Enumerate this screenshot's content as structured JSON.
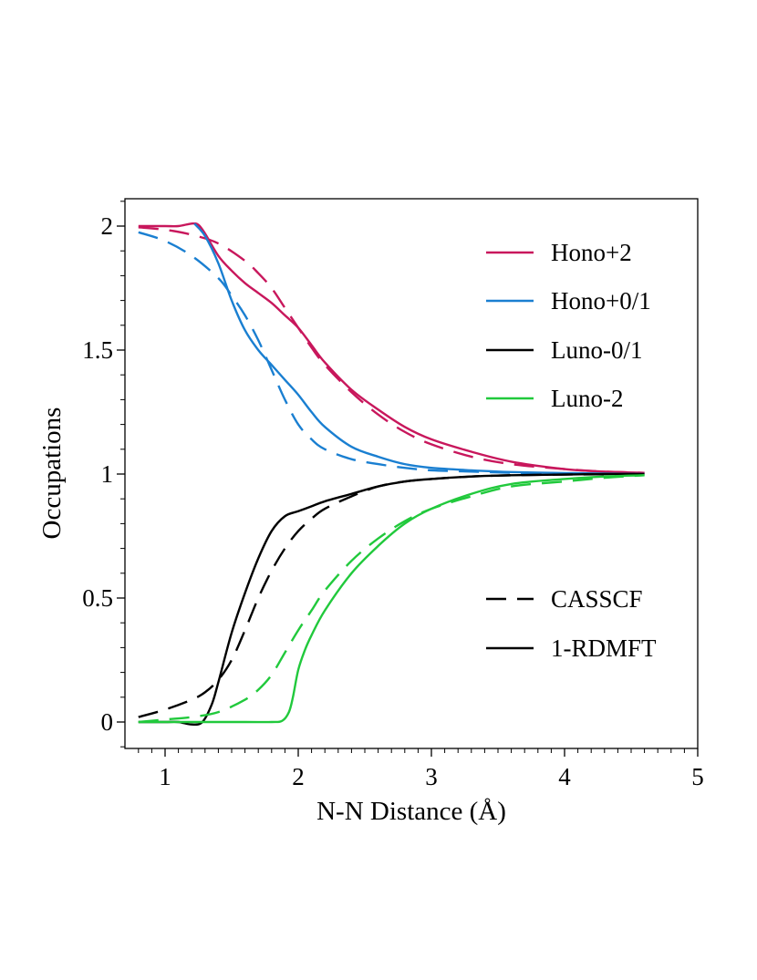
{
  "chart_data": {
    "type": "line",
    "title": "",
    "xlabel": "N-N Distance (Å)",
    "ylabel": "Occupations",
    "xlim": [
      0.7,
      5.0
    ],
    "ylim": [
      -0.1,
      2.1
    ],
    "x_ticks": [
      1,
      2,
      3,
      4,
      5
    ],
    "x_tick_labels": [
      "1",
      "2",
      "3",
      "4",
      "5"
    ],
    "y_ticks": [
      0,
      0.5,
      1,
      1.5,
      2
    ],
    "y_tick_labels": [
      "0",
      "0.5",
      "1",
      "1.5",
      "2"
    ],
    "grid": false,
    "legend_placement": "right",
    "legend": {
      "series": [
        {
          "label": "Hono+2",
          "color": "#c8175c"
        },
        {
          "label": "Hono+0/1",
          "color": "#1a7fd1"
        },
        {
          "label": "Luno-0/1",
          "color": "#000000"
        },
        {
          "label": "Luno-2",
          "color": "#21c93c"
        }
      ],
      "styles": [
        {
          "label": "CASSCF",
          "dash": "dashed"
        },
        {
          "label": "1-RDMFT",
          "dash": "solid"
        }
      ]
    },
    "series": [
      {
        "name": "Hono+2",
        "method": "1-RDMFT",
        "color": "#c8175c",
        "dash": "solid",
        "x": [
          0.8,
          1.0,
          1.1,
          1.2,
          1.25,
          1.3,
          1.4,
          1.5,
          1.6,
          1.7,
          1.8,
          1.9,
          2.0,
          2.1,
          2.2,
          2.4,
          2.6,
          2.8,
          3.0,
          3.3,
          3.6,
          4.0,
          4.3,
          4.6
        ],
        "y": [
          2.0,
          2.0,
          2.0,
          2.01,
          2.005,
          1.97,
          1.88,
          1.82,
          1.77,
          1.73,
          1.69,
          1.64,
          1.59,
          1.52,
          1.45,
          1.34,
          1.26,
          1.19,
          1.14,
          1.09,
          1.05,
          1.02,
          1.01,
          1.005
        ]
      },
      {
        "name": "Hono+2",
        "method": "CASSCF",
        "color": "#c8175c",
        "dash": "dashed",
        "x": [
          0.8,
          1.0,
          1.2,
          1.4,
          1.6,
          1.7,
          1.8,
          1.9,
          2.0,
          2.1,
          2.2,
          2.4,
          2.6,
          2.8,
          3.0,
          3.3,
          3.6,
          4.0,
          4.3,
          4.6
        ],
        "y": [
          1.995,
          1.985,
          1.965,
          1.93,
          1.86,
          1.81,
          1.75,
          1.67,
          1.59,
          1.51,
          1.44,
          1.33,
          1.24,
          1.17,
          1.12,
          1.07,
          1.04,
          1.02,
          1.01,
          1.005
        ]
      },
      {
        "name": "Hono+0/1",
        "method": "1-RDMFT",
        "color": "#1a7fd1",
        "dash": "solid",
        "x": [
          1.22,
          1.3,
          1.4,
          1.5,
          1.6,
          1.7,
          1.8,
          1.9,
          2.0,
          2.1,
          2.2,
          2.4,
          2.6,
          2.8,
          3.0,
          3.3,
          3.6,
          4.0,
          4.3,
          4.6
        ],
        "y": [
          2.01,
          1.96,
          1.85,
          1.7,
          1.58,
          1.5,
          1.44,
          1.38,
          1.32,
          1.25,
          1.19,
          1.11,
          1.07,
          1.04,
          1.025,
          1.015,
          1.008,
          1.004,
          1.002,
          1.0
        ]
      },
      {
        "name": "Hono+0/1",
        "method": "CASSCF",
        "color": "#1a7fd1",
        "dash": "dashed",
        "x": [
          0.8,
          1.0,
          1.2,
          1.4,
          1.5,
          1.6,
          1.7,
          1.8,
          1.9,
          2.0,
          2.1,
          2.2,
          2.4,
          2.6,
          2.8,
          3.0,
          3.3,
          3.6,
          4.0,
          4.6
        ],
        "y": [
          1.975,
          1.94,
          1.88,
          1.79,
          1.72,
          1.64,
          1.54,
          1.42,
          1.3,
          1.2,
          1.14,
          1.1,
          1.06,
          1.04,
          1.025,
          1.015,
          1.01,
          1.005,
          1.002,
          1.0
        ]
      },
      {
        "name": "Luno-0/1",
        "method": "1-RDMFT",
        "color": "#000000",
        "dash": "solid",
        "x": [
          0.8,
          1.0,
          1.1,
          1.2,
          1.28,
          1.35,
          1.4,
          1.5,
          1.6,
          1.7,
          1.8,
          1.9,
          2.0,
          2.1,
          2.2,
          2.4,
          2.6,
          2.8,
          3.0,
          3.3,
          3.6,
          4.0,
          4.3,
          4.6
        ],
        "y": [
          0.0,
          0.0,
          0.0,
          -0.01,
          0.0,
          0.07,
          0.16,
          0.36,
          0.52,
          0.66,
          0.77,
          0.83,
          0.85,
          0.87,
          0.89,
          0.92,
          0.95,
          0.97,
          0.98,
          0.99,
          0.995,
          0.998,
          1.0,
          1.0
        ]
      },
      {
        "name": "Luno-0/1",
        "method": "CASSCF",
        "color": "#000000",
        "dash": "dashed",
        "x": [
          0.8,
          1.0,
          1.2,
          1.3,
          1.4,
          1.5,
          1.6,
          1.7,
          1.8,
          1.9,
          2.0,
          2.1,
          2.2,
          2.4,
          2.6,
          2.8,
          3.0,
          3.3,
          3.6,
          4.0,
          4.6
        ],
        "y": [
          0.02,
          0.05,
          0.09,
          0.12,
          0.17,
          0.25,
          0.37,
          0.5,
          0.61,
          0.7,
          0.77,
          0.82,
          0.86,
          0.91,
          0.95,
          0.97,
          0.98,
          0.99,
          0.995,
          0.998,
          1.0
        ]
      },
      {
        "name": "Luno-2",
        "method": "1-RDMFT",
        "color": "#21c93c",
        "dash": "solid",
        "x": [
          0.8,
          1.2,
          1.6,
          1.8,
          1.88,
          1.93,
          1.96,
          2.0,
          2.05,
          2.1,
          2.2,
          2.4,
          2.6,
          2.8,
          3.0,
          3.3,
          3.6,
          4.0,
          4.3,
          4.6
        ],
        "y": [
          0.0,
          0.0,
          0.0,
          0.0,
          0.005,
          0.04,
          0.1,
          0.21,
          0.29,
          0.35,
          0.45,
          0.6,
          0.71,
          0.8,
          0.86,
          0.92,
          0.96,
          0.98,
          0.99,
          0.995
        ]
      },
      {
        "name": "Luno-2",
        "method": "CASSCF",
        "color": "#21c93c",
        "dash": "dashed",
        "x": [
          0.8,
          1.0,
          1.2,
          1.4,
          1.6,
          1.7,
          1.8,
          1.9,
          2.0,
          2.1,
          2.2,
          2.4,
          2.6,
          2.8,
          3.0,
          3.3,
          3.6,
          4.0,
          4.3,
          4.6
        ],
        "y": [
          0.0,
          0.01,
          0.02,
          0.04,
          0.09,
          0.13,
          0.19,
          0.28,
          0.37,
          0.45,
          0.53,
          0.65,
          0.74,
          0.81,
          0.86,
          0.91,
          0.95,
          0.97,
          0.985,
          0.995
        ]
      }
    ]
  }
}
